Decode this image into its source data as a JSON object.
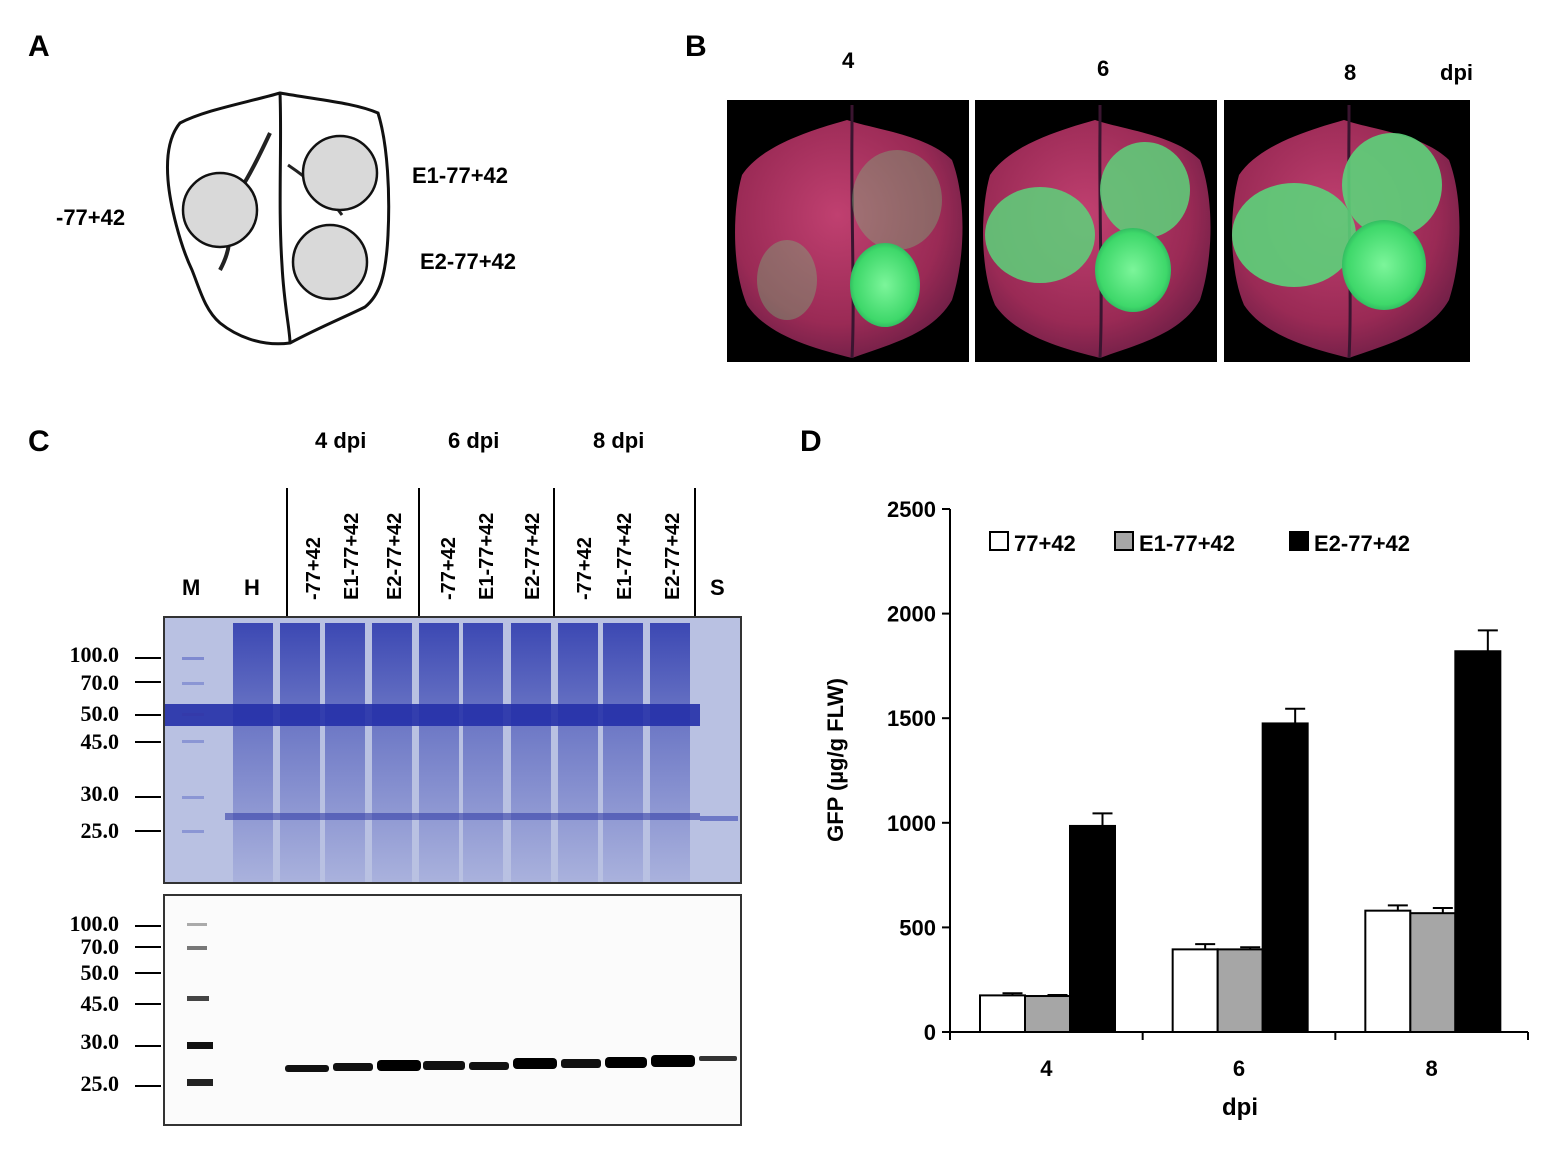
{
  "panels": {
    "a": {
      "letter": "A",
      "labels": {
        "left": "-77+42",
        "right_top": "E1-77+42",
        "right_bottom": "E2-77+42"
      }
    },
    "b": {
      "letter": "B",
      "times": [
        "4",
        "6",
        "8"
      ],
      "unit": "dpi"
    },
    "c": {
      "letter": "C",
      "groups": [
        "4 dpi",
        "6 dpi",
        "8 dpi"
      ],
      "lanes": [
        "M",
        "H",
        "-77+42",
        "E1-77+42",
        "E2-77+42",
        "-77+42",
        "E1-77+42",
        "E2-77+42",
        "-77+42",
        "E1-77+42",
        "E2-77+42",
        "S"
      ],
      "mw_top": [
        "100.0",
        "70.0",
        "50.0",
        "45.0",
        "30.0",
        "25.0"
      ],
      "mw_bottom": [
        "100.0",
        "70.0",
        "50.0",
        "45.0",
        "30.0",
        "25.0"
      ]
    },
    "d": {
      "letter": "D"
    }
  },
  "colors": {
    "coomassie": "#3a46b4",
    "gel_bg": "#b9c1e2",
    "e1": "#a6a6a6",
    "e2": "#000000"
  },
  "chart_data": {
    "type": "bar",
    "categories": [
      "4",
      "6",
      "8"
    ],
    "series": [
      {
        "name": "77+42",
        "values": [
          175,
          395,
          580
        ],
        "errors": [
          10,
          25,
          25
        ],
        "color": "#ffffff"
      },
      {
        "name": "E1-77+42",
        "values": [
          172,
          395,
          568
        ],
        "errors": [
          5,
          10,
          25
        ],
        "color": "#a6a6a6"
      },
      {
        "name": "E2-77+42",
        "values": [
          985,
          1475,
          1820
        ],
        "errors": [
          60,
          70,
          100
        ],
        "color": "#000000"
      }
    ],
    "xlabel": "dpi",
    "ylabel": "GFP (µg/g  FLW)",
    "ylim": [
      0,
      2500
    ],
    "yticks": [
      "0",
      "500",
      "1000",
      "1500",
      "2000",
      "2500"
    ],
    "legend": "top"
  }
}
